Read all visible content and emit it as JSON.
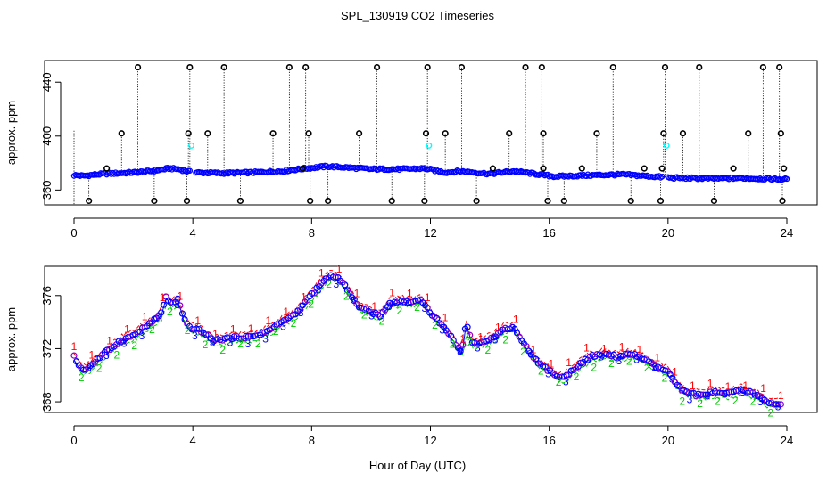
{
  "figure": {
    "title": "SPL_130919  CO2 Timeseries",
    "xlabel": "Hour of Day (UTC)"
  },
  "colors": {
    "axis": "#000000",
    "raw_points": "#0000ff",
    "raw_outliers": "#000000",
    "flagged_points": "#00ffff",
    "series_1": "#ff0000",
    "series_2": "#00cc00",
    "series_3": "#0000ff",
    "series_4": "#8800cc"
  },
  "chart_data": [
    {
      "name": "top-panel",
      "type": "scatter",
      "ylabel": "approx. ppm",
      "xlim": [
        0,
        24
      ],
      "ylim": [
        349,
        456
      ],
      "xticks": [
        0,
        4,
        8,
        12,
        16,
        20,
        24
      ],
      "yticks": [
        360,
        400,
        440
      ],
      "baseline_knots": [
        [
          0,
          371
        ],
        [
          0.3,
          370.5
        ],
        [
          1,
          372
        ],
        [
          2,
          373
        ],
        [
          2.6,
          374
        ],
        [
          3.2,
          376
        ],
        [
          3.5,
          375.5
        ],
        [
          4,
          373
        ],
        [
          5,
          372.5
        ],
        [
          6,
          373
        ],
        [
          7,
          374
        ],
        [
          7.8,
          376
        ],
        [
          8.5,
          377.5
        ],
        [
          9,
          377
        ],
        [
          10,
          375.5
        ],
        [
          11,
          375.5
        ],
        [
          11.8,
          376
        ],
        [
          12.5,
          373
        ],
        [
          13,
          374
        ],
        [
          14,
          372
        ],
        [
          14.8,
          374
        ],
        [
          15.5,
          372
        ],
        [
          16.2,
          370
        ],
        [
          16.8,
          370.5
        ],
        [
          17.5,
          371
        ],
        [
          18.5,
          371.5
        ],
        [
          19.5,
          370
        ],
        [
          20.2,
          369
        ],
        [
          21.5,
          368.5
        ],
        [
          22.5,
          368.8
        ],
        [
          23.8,
          368
        ]
      ],
      "outliers_high": [
        2.15,
        3.9,
        5.05,
        7.25,
        7.8,
        10.2,
        11.9,
        13.05,
        15.2,
        15.75,
        18.15,
        19.9,
        21.05,
        23.2,
        23.75
      ],
      "outliers_mid": [
        1.6,
        3.85,
        4.5,
        6.7,
        7.9,
        9.6,
        11.85,
        12.5,
        14.65,
        15.8,
        17.6,
        19.85,
        20.5,
        22.7,
        23.8
      ],
      "outliers_low": [
        0.5,
        2.7,
        3.8,
        5.6,
        7.95,
        8.55,
        10.7,
        11.8,
        13.55,
        15.95,
        16.5,
        18.75,
        19.75,
        21.55,
        23.85
      ],
      "outliers_near": [
        1.1,
        7.7,
        14.1,
        15.8,
        17.1,
        19.2,
        19.8,
        22.2,
        23.9
      ],
      "outlier_values": {
        "high": 451,
        "mid": 402,
        "low": 352,
        "near": 376
      },
      "flagged": [
        [
          3.95,
          393
        ],
        [
          11.95,
          393
        ],
        [
          19.95,
          393
        ]
      ],
      "gap_hours": [
        4.0,
        19.9
      ]
    },
    {
      "name": "bottom-panel",
      "type": "line",
      "ylabel": "approx. ppm",
      "xlim": [
        0,
        24
      ],
      "ylim": [
        367.2,
        378.2
      ],
      "xticks": [
        0,
        4,
        8,
        12,
        16,
        20,
        24
      ],
      "yticks": [
        368,
        372,
        376
      ],
      "series_labels": [
        "1",
        "2",
        "3"
      ],
      "knots": [
        [
          0,
          371.4
        ],
        [
          0.2,
          370.6
        ],
        [
          0.4,
          370.4
        ],
        [
          0.6,
          370.8
        ],
        [
          1,
          371.6
        ],
        [
          1.5,
          372.5
        ],
        [
          2,
          373
        ],
        [
          2.5,
          373.8
        ],
        [
          2.9,
          374.5
        ],
        [
          3.1,
          375.9
        ],
        [
          3.3,
          375.3
        ],
        [
          3.5,
          375.7
        ],
        [
          3.7,
          374.2
        ],
        [
          3.9,
          373.6
        ],
        [
          4.3,
          373.3
        ],
        [
          4.7,
          372.6
        ],
        [
          5.2,
          372.8
        ],
        [
          6,
          372.9
        ],
        [
          6.5,
          373.3
        ],
        [
          7,
          374
        ],
        [
          7.5,
          374.7
        ],
        [
          7.9,
          375.8
        ],
        [
          8.3,
          376.8
        ],
        [
          8.6,
          377.5
        ],
        [
          8.9,
          377.3
        ],
        [
          9.2,
          376.5
        ],
        [
          9.6,
          375.1
        ],
        [
          10,
          374.8
        ],
        [
          10.3,
          374.4
        ],
        [
          10.6,
          375.4
        ],
        [
          11,
          375.6
        ],
        [
          11.4,
          375.5
        ],
        [
          11.7,
          375.7
        ],
        [
          12,
          374.7
        ],
        [
          12.3,
          374
        ],
        [
          12.6,
          373.2
        ],
        [
          12.9,
          372.2
        ],
        [
          13.05,
          371.7
        ],
        [
          13.2,
          373.9
        ],
        [
          13.4,
          372.4
        ],
        [
          13.7,
          372.5
        ],
        [
          14.1,
          372.8
        ],
        [
          14.5,
          373.5
        ],
        [
          14.8,
          373.6
        ],
        [
          15.2,
          372.2
        ],
        [
          15.6,
          371
        ],
        [
          15.9,
          370.5
        ],
        [
          16.2,
          370
        ],
        [
          16.5,
          369.8
        ],
        [
          16.7,
          370.2
        ],
        [
          17,
          370.8
        ],
        [
          17.4,
          371.4
        ],
        [
          17.9,
          371.6
        ],
        [
          18.3,
          371.4
        ],
        [
          18.8,
          371.6
        ],
        [
          19.2,
          371.2
        ],
        [
          19.6,
          370.6
        ],
        [
          20,
          370.3
        ],
        [
          20.3,
          369.2
        ],
        [
          20.6,
          368.7
        ],
        [
          21,
          368.5
        ],
        [
          21.5,
          368.7
        ],
        [
          22,
          368.6
        ],
        [
          22.5,
          368.9
        ],
        [
          23,
          368.5
        ],
        [
          23.3,
          368
        ],
        [
          23.8,
          367.8
        ]
      ]
    }
  ]
}
